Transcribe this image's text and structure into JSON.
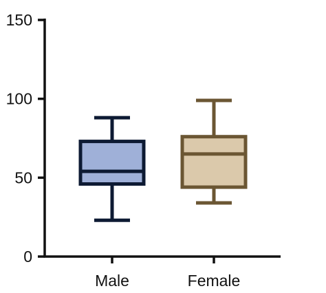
{
  "chart_data": {
    "type": "box",
    "title": "",
    "xlabel": "",
    "ylabel": "",
    "ylim": [
      0,
      150
    ],
    "yticks": [
      0,
      50,
      100,
      150
    ],
    "grid": false,
    "legend": "none",
    "categories": [
      "Male",
      "Female"
    ],
    "boxes": [
      {
        "category": "Male",
        "min": 23,
        "q1": 46,
        "median": 54,
        "q3": 73,
        "max": 88,
        "fill": "#9fb0d8",
        "stroke": "#0d1a33"
      },
      {
        "category": "Female",
        "min": 34,
        "q1": 44,
        "median": 65,
        "q3": 76,
        "max": 99,
        "fill": "#dbc9ab",
        "stroke": "#6b5633"
      }
    ]
  }
}
